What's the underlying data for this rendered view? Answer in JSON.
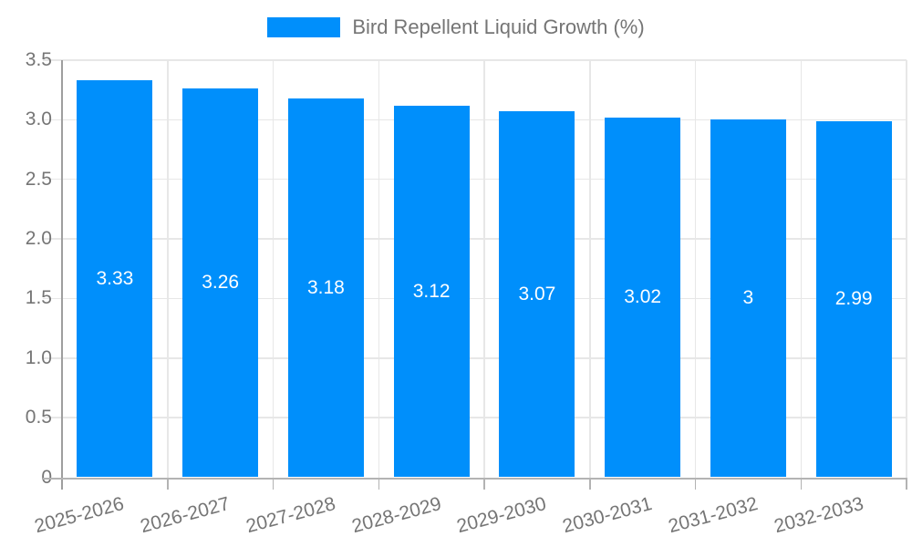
{
  "chart_data": {
    "type": "bar",
    "title": "Bird Repellent Liquid Growth (%)",
    "categories": [
      "2025-2026",
      "2026-2027",
      "2027-2028",
      "2028-2029",
      "2029-2030",
      "2030-2031",
      "2031-2032",
      "2032-2033"
    ],
    "values": [
      3.33,
      3.26,
      3.18,
      3.12,
      3.07,
      3.02,
      3.0,
      2.99
    ],
    "bar_labels": [
      "3.33",
      "3.26",
      "3.18",
      "3.12",
      "3.07",
      "3.02",
      "3",
      "2.99"
    ],
    "y_ticks": [
      "0",
      "0.5",
      "1.0",
      "1.5",
      "2.0",
      "2.5",
      "3.0",
      "3.5"
    ],
    "ylim": [
      0,
      3.5
    ],
    "xlabel": "",
    "ylabel": "",
    "grid": true,
    "legend_position": "top-center",
    "colors": {
      "bar": "#008FFB",
      "bar_label": "#ffffff",
      "axis_text": "#757575",
      "gridline": "#e7e7e7",
      "axis_line": "#9e9e9e",
      "tick_line": "#b3b3b3",
      "background": "#ffffff"
    }
  }
}
